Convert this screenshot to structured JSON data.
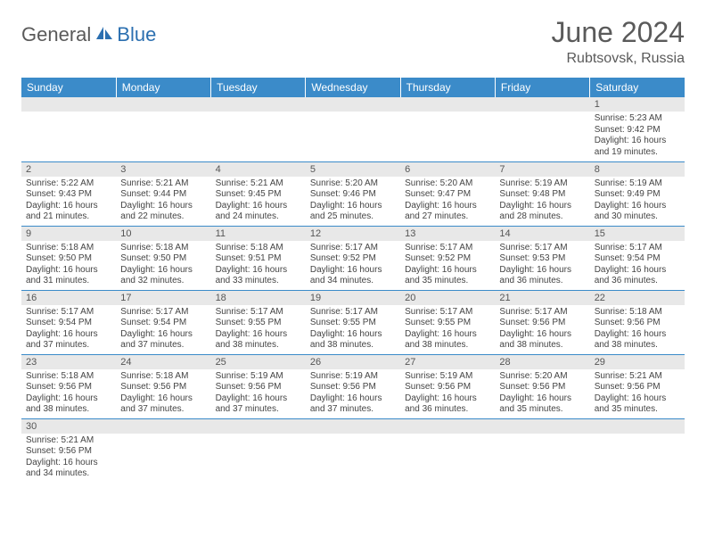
{
  "brand": {
    "part1": "General",
    "part2": "Blue"
  },
  "title": "June 2024",
  "location": "Rubtsovsk, Russia",
  "colors": {
    "header_bg": "#3b8bc9",
    "header_text": "#ffffff",
    "daynum_bg": "#e8e8e8",
    "border": "#3b8bc9",
    "brand_gray": "#5a5a5a",
    "brand_blue": "#2b6fb0"
  },
  "dayHeaders": [
    "Sunday",
    "Monday",
    "Tuesday",
    "Wednesday",
    "Thursday",
    "Friday",
    "Saturday"
  ],
  "weeks": [
    [
      null,
      null,
      null,
      null,
      null,
      null,
      {
        "n": 1,
        "sr": "5:23 AM",
        "ss": "9:42 PM",
        "dl": "16 hours and 19 minutes."
      }
    ],
    [
      {
        "n": 2,
        "sr": "5:22 AM",
        "ss": "9:43 PM",
        "dl": "16 hours and 21 minutes."
      },
      {
        "n": 3,
        "sr": "5:21 AM",
        "ss": "9:44 PM",
        "dl": "16 hours and 22 minutes."
      },
      {
        "n": 4,
        "sr": "5:21 AM",
        "ss": "9:45 PM",
        "dl": "16 hours and 24 minutes."
      },
      {
        "n": 5,
        "sr": "5:20 AM",
        "ss": "9:46 PM",
        "dl": "16 hours and 25 minutes."
      },
      {
        "n": 6,
        "sr": "5:20 AM",
        "ss": "9:47 PM",
        "dl": "16 hours and 27 minutes."
      },
      {
        "n": 7,
        "sr": "5:19 AM",
        "ss": "9:48 PM",
        "dl": "16 hours and 28 minutes."
      },
      {
        "n": 8,
        "sr": "5:19 AM",
        "ss": "9:49 PM",
        "dl": "16 hours and 30 minutes."
      }
    ],
    [
      {
        "n": 9,
        "sr": "5:18 AM",
        "ss": "9:50 PM",
        "dl": "16 hours and 31 minutes."
      },
      {
        "n": 10,
        "sr": "5:18 AM",
        "ss": "9:50 PM",
        "dl": "16 hours and 32 minutes."
      },
      {
        "n": 11,
        "sr": "5:18 AM",
        "ss": "9:51 PM",
        "dl": "16 hours and 33 minutes."
      },
      {
        "n": 12,
        "sr": "5:17 AM",
        "ss": "9:52 PM",
        "dl": "16 hours and 34 minutes."
      },
      {
        "n": 13,
        "sr": "5:17 AM",
        "ss": "9:52 PM",
        "dl": "16 hours and 35 minutes."
      },
      {
        "n": 14,
        "sr": "5:17 AM",
        "ss": "9:53 PM",
        "dl": "16 hours and 36 minutes."
      },
      {
        "n": 15,
        "sr": "5:17 AM",
        "ss": "9:54 PM",
        "dl": "16 hours and 36 minutes."
      }
    ],
    [
      {
        "n": 16,
        "sr": "5:17 AM",
        "ss": "9:54 PM",
        "dl": "16 hours and 37 minutes."
      },
      {
        "n": 17,
        "sr": "5:17 AM",
        "ss": "9:54 PM",
        "dl": "16 hours and 37 minutes."
      },
      {
        "n": 18,
        "sr": "5:17 AM",
        "ss": "9:55 PM",
        "dl": "16 hours and 38 minutes."
      },
      {
        "n": 19,
        "sr": "5:17 AM",
        "ss": "9:55 PM",
        "dl": "16 hours and 38 minutes."
      },
      {
        "n": 20,
        "sr": "5:17 AM",
        "ss": "9:55 PM",
        "dl": "16 hours and 38 minutes."
      },
      {
        "n": 21,
        "sr": "5:17 AM",
        "ss": "9:56 PM",
        "dl": "16 hours and 38 minutes."
      },
      {
        "n": 22,
        "sr": "5:18 AM",
        "ss": "9:56 PM",
        "dl": "16 hours and 38 minutes."
      }
    ],
    [
      {
        "n": 23,
        "sr": "5:18 AM",
        "ss": "9:56 PM",
        "dl": "16 hours and 38 minutes."
      },
      {
        "n": 24,
        "sr": "5:18 AM",
        "ss": "9:56 PM",
        "dl": "16 hours and 37 minutes."
      },
      {
        "n": 25,
        "sr": "5:19 AM",
        "ss": "9:56 PM",
        "dl": "16 hours and 37 minutes."
      },
      {
        "n": 26,
        "sr": "5:19 AM",
        "ss": "9:56 PM",
        "dl": "16 hours and 37 minutes."
      },
      {
        "n": 27,
        "sr": "5:19 AM",
        "ss": "9:56 PM",
        "dl": "16 hours and 36 minutes."
      },
      {
        "n": 28,
        "sr": "5:20 AM",
        "ss": "9:56 PM",
        "dl": "16 hours and 35 minutes."
      },
      {
        "n": 29,
        "sr": "5:21 AM",
        "ss": "9:56 PM",
        "dl": "16 hours and 35 minutes."
      }
    ],
    [
      {
        "n": 30,
        "sr": "5:21 AM",
        "ss": "9:56 PM",
        "dl": "16 hours and 34 minutes."
      },
      null,
      null,
      null,
      null,
      null,
      null
    ]
  ],
  "labels": {
    "sunrise": "Sunrise: ",
    "sunset": "Sunset: ",
    "daylight": "Daylight: "
  }
}
